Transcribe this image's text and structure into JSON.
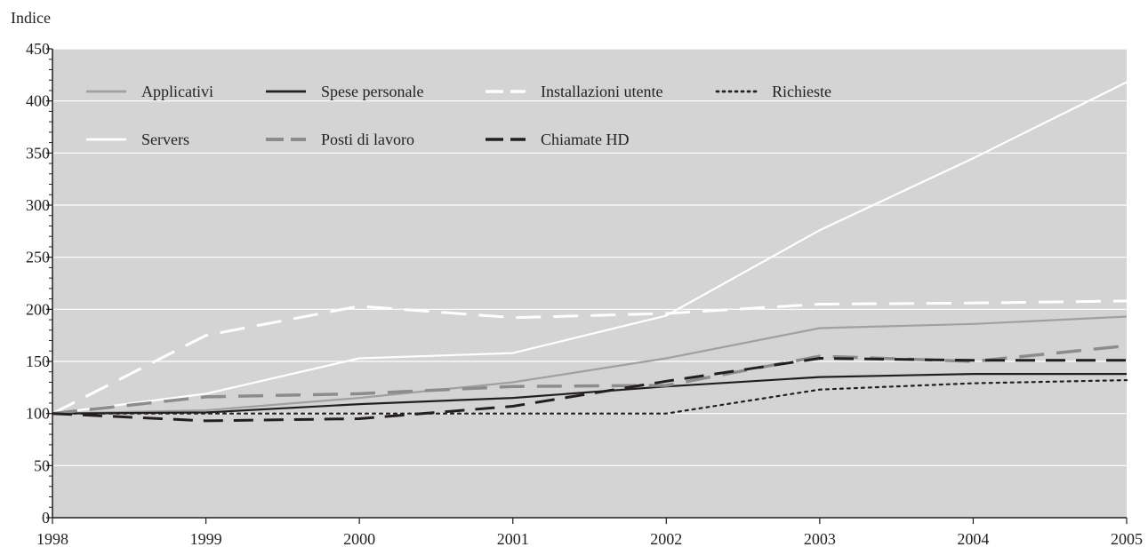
{
  "chart_data": {
    "type": "line",
    "ylabel": "Indice",
    "xlabel": "",
    "x": [
      "1998",
      "1999",
      "2000",
      "2001",
      "2002",
      "2003",
      "2004",
      "2005"
    ],
    "ylim": [
      0,
      450
    ],
    "yticks": [
      0,
      50,
      100,
      150,
      200,
      250,
      300,
      350,
      400,
      450
    ],
    "grid": "horizontal",
    "legend_position": "top-left",
    "background_color": "#d4d4d4",
    "series": [
      {
        "name": "Applicativi",
        "color": "#a0a0a0",
        "style": "solid",
        "values": [
          100,
          103,
          115,
          130,
          153,
          182,
          186,
          193
        ]
      },
      {
        "name": "Spese personale",
        "color": "#231f20",
        "style": "solid",
        "values": [
          100,
          101,
          109,
          115,
          126,
          135,
          138,
          138
        ]
      },
      {
        "name": "Installazioni utente",
        "color": "#ffffff",
        "style": "dashed",
        "values": [
          100,
          175,
          203,
          192,
          196,
          205,
          206,
          208
        ]
      },
      {
        "name": "Richieste",
        "color": "#231f20",
        "style": "dotted",
        "values": [
          100,
          100,
          100,
          100,
          100,
          123,
          129,
          132
        ]
      },
      {
        "name": "Servers",
        "color": "#ffffff",
        "style": "solid",
        "values": [
          100,
          119,
          153,
          158,
          194,
          276,
          345,
          418
        ]
      },
      {
        "name": "Posti di lavoro",
        "color": "#8c8c8c",
        "style": "dashed",
        "values": [
          100,
          116,
          119,
          126,
          127,
          155,
          150,
          165
        ]
      },
      {
        "name": "Chiamate HD",
        "color": "#231f20",
        "style": "dashed",
        "values": [
          100,
          93,
          95,
          107,
          131,
          153,
          151,
          151
        ]
      }
    ]
  }
}
